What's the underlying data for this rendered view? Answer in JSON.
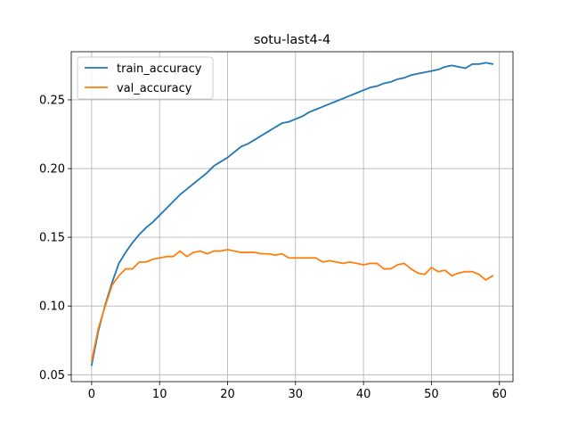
{
  "chart_data": {
    "type": "line",
    "title": "sotu-last4-4",
    "xlabel": "",
    "ylabel": "",
    "xlim": [
      -3,
      62
    ],
    "ylim": [
      0.045,
      0.285
    ],
    "xticks": [
      0,
      10,
      20,
      30,
      40,
      50,
      60
    ],
    "yticks": [
      0.05,
      0.1,
      0.15,
      0.2,
      0.25
    ],
    "ytick_labels": [
      "0.05",
      "0.10",
      "0.15",
      "0.20",
      "0.25"
    ],
    "grid": true,
    "legend_position": "upper-left",
    "x": [
      0,
      1,
      2,
      3,
      4,
      5,
      6,
      7,
      8,
      9,
      10,
      11,
      12,
      13,
      14,
      15,
      16,
      17,
      18,
      19,
      20,
      21,
      22,
      23,
      24,
      25,
      26,
      27,
      28,
      29,
      30,
      31,
      32,
      33,
      34,
      35,
      36,
      37,
      38,
      39,
      40,
      41,
      42,
      43,
      44,
      45,
      46,
      47,
      48,
      49,
      50,
      51,
      52,
      53,
      54,
      55,
      56,
      57,
      58,
      59
    ],
    "series": [
      {
        "name": "train_accuracy",
        "color": "#1f77b4",
        "values": [
          0.057,
          0.082,
          0.101,
          0.117,
          0.131,
          0.139,
          0.146,
          0.152,
          0.157,
          0.161,
          0.166,
          0.171,
          0.176,
          0.181,
          0.185,
          0.189,
          0.193,
          0.197,
          0.202,
          0.205,
          0.208,
          0.212,
          0.216,
          0.218,
          0.221,
          0.224,
          0.227,
          0.23,
          0.233,
          0.234,
          0.236,
          0.238,
          0.241,
          0.243,
          0.245,
          0.247,
          0.249,
          0.251,
          0.253,
          0.255,
          0.257,
          0.259,
          0.26,
          0.262,
          0.263,
          0.265,
          0.266,
          0.268,
          0.269,
          0.27,
          0.271,
          0.272,
          0.274,
          0.275,
          0.274,
          0.273,
          0.276,
          0.276,
          0.277,
          0.276
        ]
      },
      {
        "name": "val_accuracy",
        "color": "#ff7f0e",
        "values": [
          0.06,
          0.084,
          0.1,
          0.115,
          0.122,
          0.127,
          0.127,
          0.132,
          0.132,
          0.134,
          0.135,
          0.136,
          0.136,
          0.14,
          0.136,
          0.139,
          0.14,
          0.138,
          0.14,
          0.14,
          0.141,
          0.14,
          0.139,
          0.139,
          0.139,
          0.138,
          0.138,
          0.137,
          0.138,
          0.135,
          0.135,
          0.135,
          0.135,
          0.135,
          0.132,
          0.133,
          0.132,
          0.131,
          0.132,
          0.131,
          0.13,
          0.131,
          0.131,
          0.127,
          0.127,
          0.13,
          0.131,
          0.127,
          0.124,
          0.123,
          0.128,
          0.125,
          0.126,
          0.122,
          0.124,
          0.125,
          0.125,
          0.123,
          0.119,
          0.122
        ]
      }
    ]
  }
}
